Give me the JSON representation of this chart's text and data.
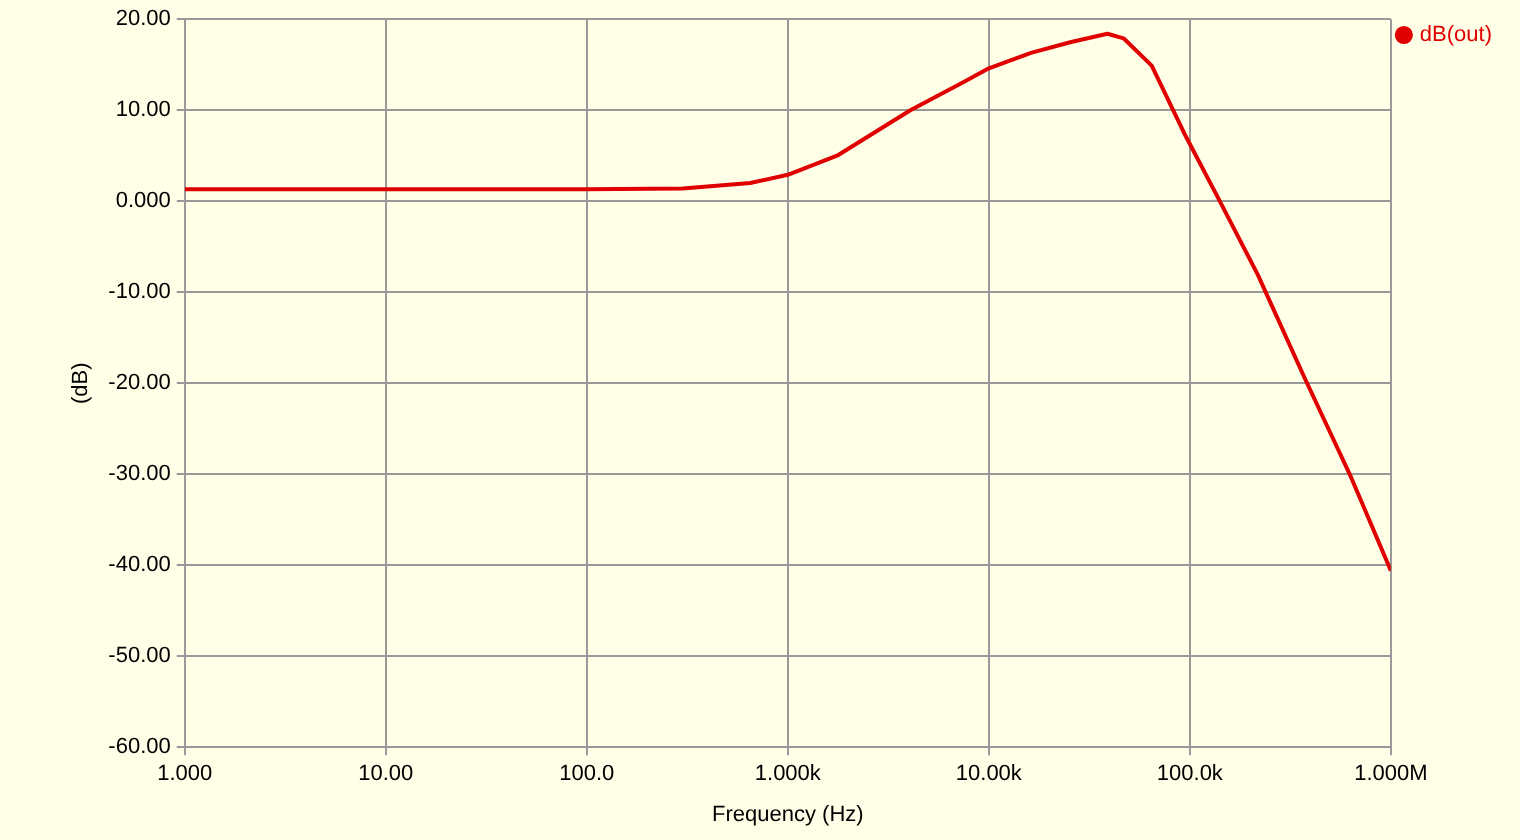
{
  "chart_data": {
    "type": "line",
    "xlabel": "Frequency (Hz)",
    "ylabel": "(dB)",
    "series": [
      {
        "name": "dB(out)",
        "color": "#e00000",
        "x": [
          1,
          3,
          10,
          30,
          100,
          300,
          650,
          1000,
          1758,
          4070,
          7500,
          10000,
          16200,
          25700,
          38900,
          46800,
          64600,
          93600,
          138000,
          218000,
          372000,
          633000,
          1000000
        ],
        "values": [
          1.3,
          1.3,
          1.3,
          1.3,
          1.3,
          1.4,
          2.0,
          2.9,
          5.0,
          10.0,
          13.1,
          14.6,
          16.3,
          17.5,
          18.4,
          17.9,
          14.9,
          7.5,
          0.4,
          -8.1,
          -19.4,
          -30.3,
          -40.6
        ]
      }
    ],
    "log": "x",
    "xlim": [
      1,
      1000000
    ],
    "xticks": [
      {
        "value": 1,
        "label": "1.000"
      },
      {
        "value": 10,
        "label": "10.00"
      },
      {
        "value": 100,
        "label": "100.0"
      },
      {
        "value": 1000,
        "label": "1.000k"
      },
      {
        "value": 10000,
        "label": "10.00k"
      },
      {
        "value": 100000,
        "label": "100.0k"
      },
      {
        "value": 1000000,
        "label": "1.000M"
      }
    ],
    "ylim": [
      -60,
      20
    ],
    "yticks": [
      {
        "value": -60,
        "label": "-60.00"
      },
      {
        "value": -50,
        "label": "-50.00"
      },
      {
        "value": -40,
        "label": "-40.00"
      },
      {
        "value": -30,
        "label": "-30.00"
      },
      {
        "value": -20,
        "label": "-20.00"
      },
      {
        "value": -10,
        "label": "-10.00"
      },
      {
        "value": 0,
        "label": "0.000"
      },
      {
        "value": 10,
        "label": "10.00"
      },
      {
        "value": 20,
        "label": "20.00"
      }
    ],
    "grid": true,
    "legend": "top right",
    "marker": "none",
    "line_style": "solid"
  }
}
